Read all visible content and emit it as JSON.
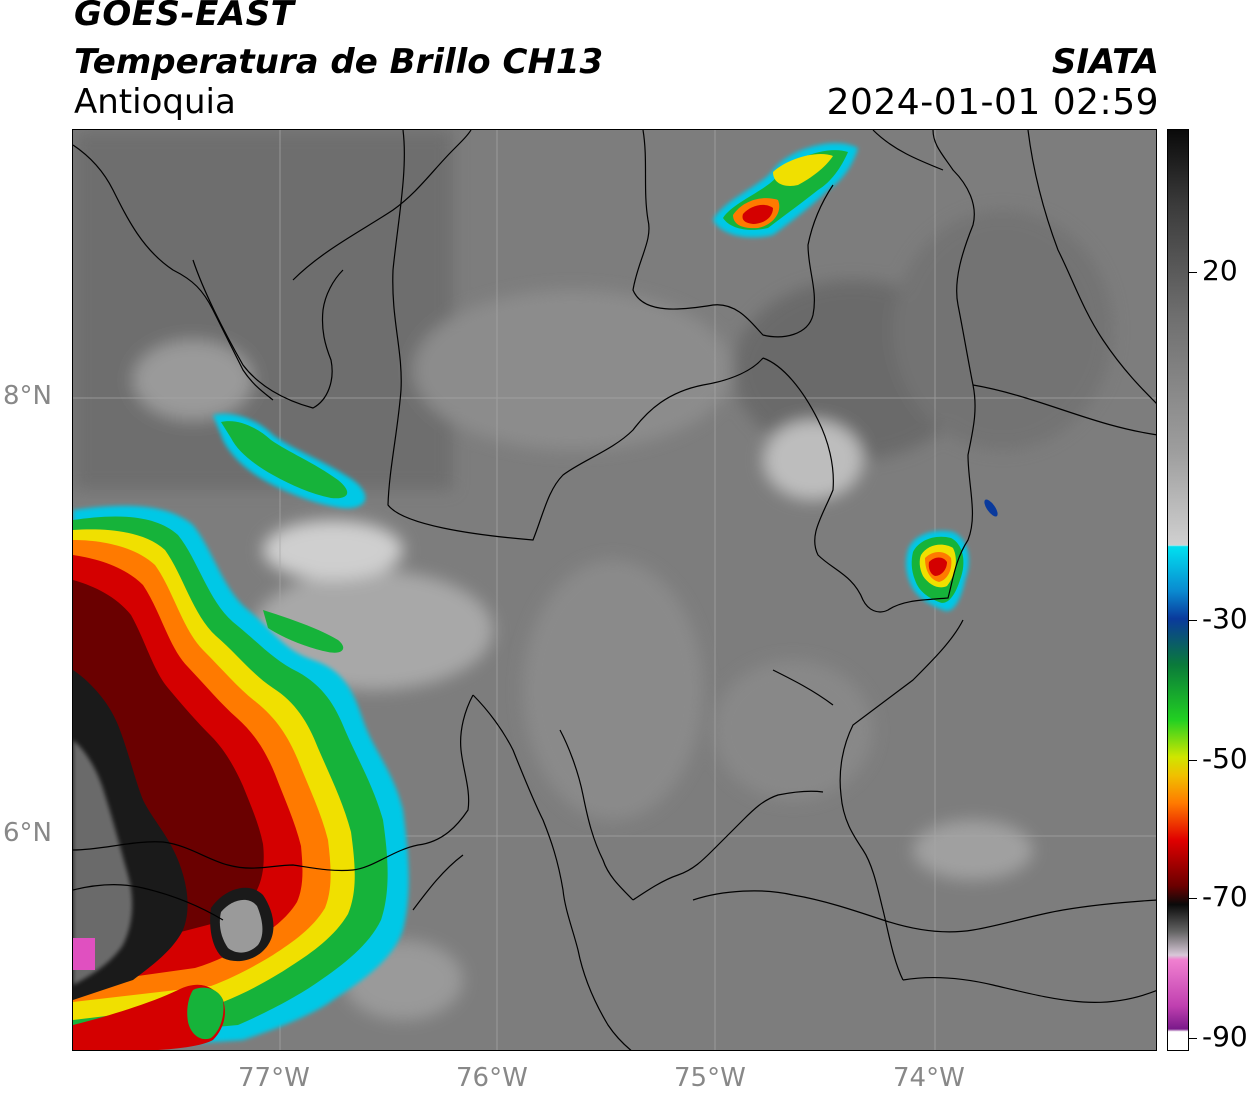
{
  "header": {
    "satellite": "GOES-EAST",
    "product": "Temperatura de Brillo CH13",
    "region": "Antioquia",
    "organization": "SIATA",
    "datetime": "2024-01-01 02:59"
  },
  "map": {
    "lat_labels": [
      "8°N",
      "6°N"
    ],
    "lon_labels": [
      "77°W",
      "76°W",
      "75°W",
      "74°W"
    ]
  },
  "colorbar": {
    "ticks": [
      "20",
      "-30",
      "-50",
      "-70",
      "-90"
    ],
    "colors": {
      "warm_gray": "#7a7a7a",
      "light": "#f0f0f0",
      "cyan": "#00c8e6",
      "blue": "#0a3a9c",
      "green": "#16b33a",
      "yellow": "#f0e000",
      "orange": "#ff7a00",
      "red": "#d40000",
      "dark_red": "#6a0000",
      "black": "#0a0a0a",
      "magenta": "#e050c0",
      "purple": "#8a1a9a"
    }
  }
}
